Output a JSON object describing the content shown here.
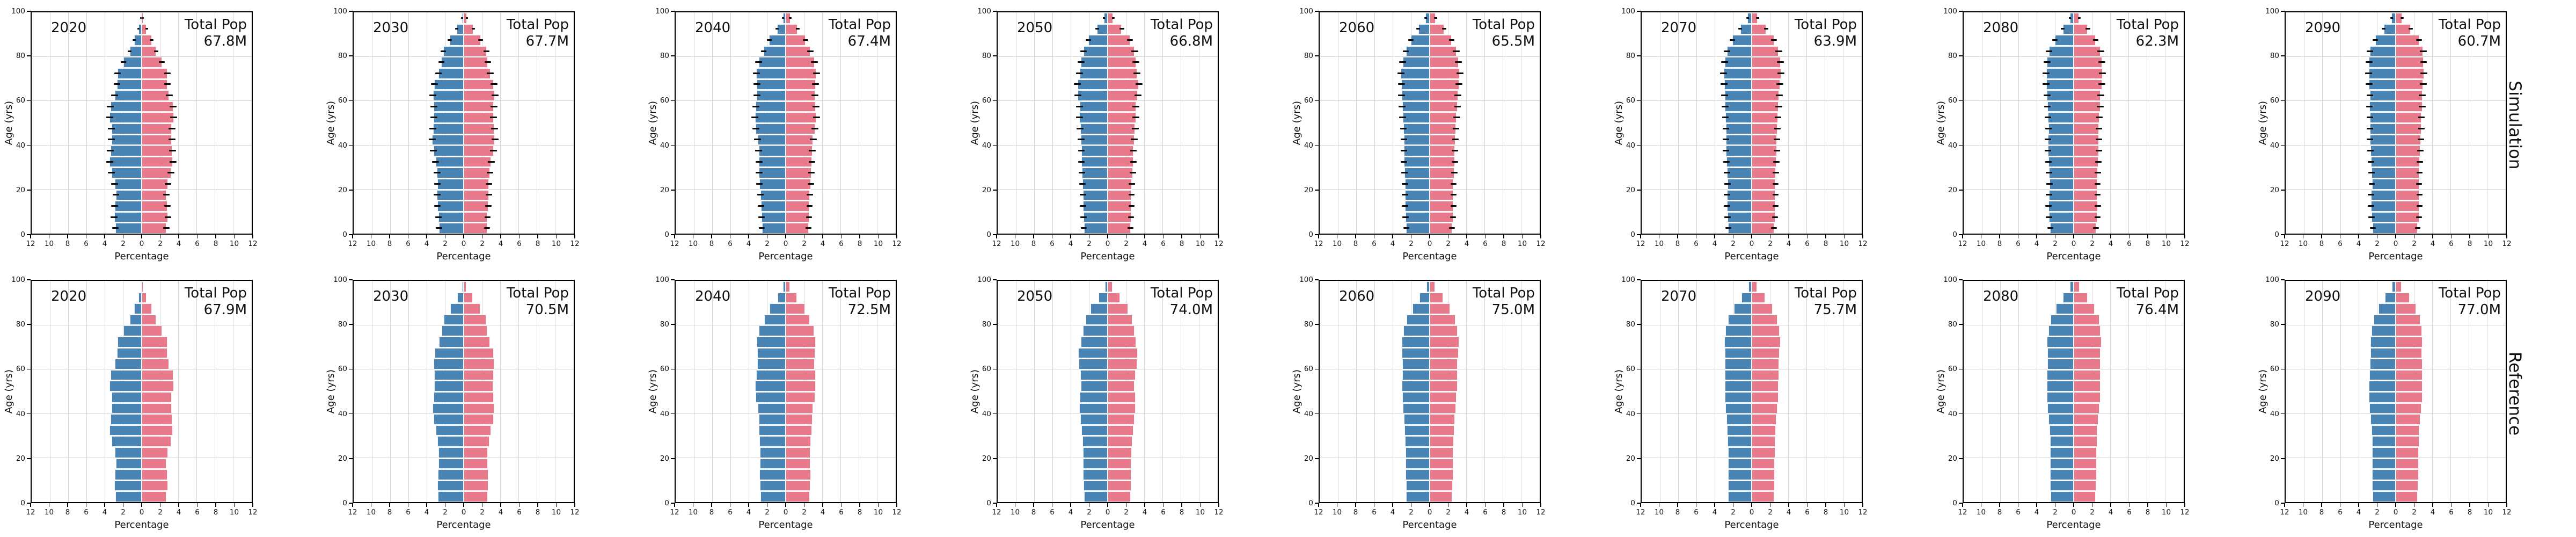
{
  "colors": {
    "male": "#4a84b5",
    "female": "#e8798a",
    "grid": "#d4d4d4",
    "spine": "#000000",
    "error_bar": "#0a0a0a",
    "background": "#ffffff"
  },
  "chart_data": {
    "type": "bar",
    "subtype": "population-pyramid-grid",
    "title": "",
    "xlabel": "Percentage",
    "ylabel": "Age (yrs)",
    "total_pop_label": "Total Pop",
    "xticklabels": [
      "12",
      "10",
      "8",
      "6",
      "4",
      "2",
      "0",
      "2",
      "4",
      "6",
      "8",
      "10",
      "12"
    ],
    "yticklabels": [
      "0",
      "20",
      "40",
      "60",
      "80",
      "100"
    ],
    "x_abs_max": 12,
    "age_bins": [
      0,
      5,
      10,
      15,
      20,
      25,
      30,
      35,
      40,
      45,
      50,
      55,
      60,
      65,
      70,
      75,
      80,
      85,
      90,
      95
    ],
    "age_bin_width": 5,
    "grid_on": true,
    "rows": [
      {
        "label": "Simulation",
        "error_bars": true,
        "charts": [
          {
            "year": "2020",
            "total": "67.8M",
            "male": [
              2.85,
              3.0,
              2.95,
              2.8,
              2.95,
              3.3,
              3.5,
              3.4,
              3.3,
              3.3,
              3.5,
              3.4,
              2.95,
              2.7,
              2.65,
              2.0,
              1.3,
              0.8,
              0.35,
              0.08
            ],
            "female": [
              2.7,
              2.85,
              2.8,
              2.7,
              2.85,
              3.2,
              3.4,
              3.35,
              3.3,
              3.3,
              3.5,
              3.45,
              3.0,
              2.8,
              2.8,
              2.2,
              1.6,
              1.1,
              0.55,
              0.15
            ]
          },
          {
            "year": "2030",
            "total": "67.7M",
            "male": [
              2.7,
              2.75,
              2.85,
              2.9,
              2.85,
              2.9,
              3.05,
              3.3,
              3.45,
              3.35,
              3.25,
              3.25,
              3.35,
              3.2,
              2.75,
              2.45,
              2.2,
              1.5,
              0.75,
              0.2
            ],
            "female": [
              2.55,
              2.6,
              2.7,
              2.75,
              2.75,
              2.85,
              3.0,
              3.25,
              3.4,
              3.35,
              3.25,
              3.3,
              3.4,
              3.3,
              2.9,
              2.65,
              2.5,
              1.85,
              1.05,
              0.35
            ]
          },
          {
            "year": "2040",
            "total": "67.4M",
            "male": [
              2.6,
              2.65,
              2.7,
              2.75,
              2.85,
              2.9,
              2.9,
              2.95,
              3.05,
              3.25,
              3.35,
              3.25,
              3.15,
              3.15,
              3.2,
              2.95,
              2.4,
              1.8,
              0.95,
              0.3
            ],
            "female": [
              2.5,
              2.55,
              2.6,
              2.65,
              2.75,
              2.8,
              2.85,
              2.9,
              3.0,
              3.2,
              3.35,
              3.3,
              3.2,
              3.25,
              3.35,
              3.15,
              2.7,
              2.15,
              1.3,
              0.5
            ]
          },
          {
            "year": "2050",
            "total": "66.8M",
            "male": [
              2.6,
              2.65,
              2.7,
              2.7,
              2.75,
              2.8,
              2.85,
              2.85,
              2.9,
              3.0,
              3.1,
              3.05,
              3.25,
              3.3,
              3.05,
              2.9,
              2.65,
              2.1,
              1.15,
              0.4
            ],
            "female": [
              2.5,
              2.55,
              2.6,
              2.6,
              2.65,
              2.75,
              2.8,
              2.8,
              2.9,
              3.0,
              3.1,
              3.1,
              3.3,
              3.4,
              3.2,
              3.1,
              2.95,
              2.45,
              1.55,
              0.6
            ]
          },
          {
            "year": "2060",
            "total": "65.5M",
            "male": [
              2.55,
              2.65,
              2.7,
              2.7,
              2.7,
              2.75,
              2.8,
              2.8,
              2.8,
              2.85,
              2.95,
              3.0,
              3.05,
              3.1,
              3.15,
              2.95,
              2.6,
              2.05,
              1.25,
              0.45
            ],
            "female": [
              2.45,
              2.55,
              2.6,
              2.6,
              2.6,
              2.7,
              2.75,
              2.75,
              2.8,
              2.85,
              2.95,
              3.05,
              3.1,
              3.2,
              3.3,
              3.15,
              2.9,
              2.4,
              1.6,
              0.65
            ]
          },
          {
            "year": "2070",
            "total": "63.9M",
            "male": [
              2.55,
              2.65,
              2.7,
              2.7,
              2.65,
              2.7,
              2.75,
              2.8,
              2.8,
              2.8,
              2.85,
              2.9,
              2.95,
              3.0,
              3.05,
              2.95,
              2.7,
              2.1,
              1.25,
              0.45
            ],
            "female": [
              2.45,
              2.55,
              2.6,
              2.6,
              2.6,
              2.65,
              2.7,
              2.75,
              2.75,
              2.8,
              2.85,
              2.95,
              3.0,
              3.1,
              3.2,
              3.15,
              2.95,
              2.45,
              1.6,
              0.65
            ]
          },
          {
            "year": "2080",
            "total": "62.3M",
            "male": [
              2.55,
              2.7,
              2.75,
              2.7,
              2.65,
              2.7,
              2.75,
              2.8,
              2.8,
              2.75,
              2.8,
              2.85,
              2.9,
              3.0,
              3.0,
              2.9,
              2.7,
              2.05,
              1.2,
              0.4
            ],
            "female": [
              2.45,
              2.6,
              2.65,
              2.6,
              2.6,
              2.65,
              2.7,
              2.75,
              2.75,
              2.75,
              2.8,
              2.9,
              2.95,
              3.1,
              3.15,
              3.1,
              2.95,
              2.4,
              1.55,
              0.6
            ]
          },
          {
            "year": "2090",
            "total": "60.7M",
            "male": [
              2.5,
              2.65,
              2.7,
              2.7,
              2.6,
              2.65,
              2.7,
              2.75,
              2.8,
              2.8,
              2.8,
              2.85,
              2.8,
              2.9,
              2.95,
              2.9,
              2.8,
              2.2,
              1.3,
              0.45
            ],
            "female": [
              2.4,
              2.55,
              2.6,
              2.6,
              2.55,
              2.6,
              2.65,
              2.7,
              2.75,
              2.8,
              2.8,
              2.9,
              2.9,
              3.0,
              3.1,
              3.05,
              3.0,
              2.55,
              1.65,
              0.7
            ]
          }
        ]
      },
      {
        "label": "Reference",
        "error_bars": false,
        "charts": [
          {
            "year": "2020",
            "total": "67.9M",
            "male": [
              2.85,
              3.0,
              2.95,
              2.8,
              2.95,
              3.3,
              3.5,
              3.4,
              3.3,
              3.3,
              3.5,
              3.4,
              2.95,
              2.7,
              2.65,
              2.0,
              1.3,
              0.8,
              0.35,
              0.08
            ],
            "female": [
              2.7,
              2.85,
              2.8,
              2.7,
              2.85,
              3.2,
              3.4,
              3.35,
              3.3,
              3.3,
              3.5,
              3.45,
              3.0,
              2.8,
              2.8,
              2.2,
              1.6,
              1.1,
              0.55,
              0.15
            ]
          },
          {
            "year": "2030",
            "total": "70.5M",
            "male": [
              2.8,
              2.85,
              2.8,
              2.75,
              2.75,
              2.85,
              3.05,
              3.3,
              3.4,
              3.3,
              3.2,
              3.2,
              3.3,
              3.15,
              2.7,
              2.4,
              2.15,
              1.45,
              0.7,
              0.18
            ],
            "female": [
              2.65,
              2.7,
              2.7,
              2.65,
              2.65,
              2.8,
              3.0,
              3.25,
              3.35,
              3.3,
              3.2,
              3.25,
              3.35,
              3.25,
              2.85,
              2.6,
              2.45,
              1.8,
              1.0,
              0.32
            ]
          },
          {
            "year": "2040",
            "total": "72.5M",
            "male": [
              2.75,
              2.8,
              2.85,
              2.8,
              2.8,
              2.85,
              2.9,
              2.95,
              3.05,
              3.25,
              3.35,
              3.2,
              3.1,
              3.1,
              3.15,
              2.9,
              2.35,
              1.75,
              0.9,
              0.28
            ],
            "female": [
              2.65,
              2.7,
              2.75,
              2.7,
              2.7,
              2.75,
              2.85,
              2.9,
              3.0,
              3.2,
              3.3,
              3.25,
              3.15,
              3.2,
              3.3,
              3.1,
              2.65,
              2.1,
              1.25,
              0.45
            ]
          },
          {
            "year": "2050",
            "total": "74.0M",
            "male": [
              2.6,
              2.65,
              2.7,
              2.7,
              2.7,
              2.75,
              2.85,
              3.0,
              3.1,
              3.05,
              2.95,
              3.0,
              3.15,
              3.2,
              2.95,
              2.7,
              2.4,
              1.85,
              1.0,
              0.32
            ],
            "female": [
              2.5,
              2.55,
              2.6,
              2.6,
              2.65,
              2.7,
              2.8,
              2.95,
              3.05,
              3.05,
              2.95,
              3.05,
              3.2,
              3.3,
              3.1,
              2.9,
              2.7,
              2.2,
              1.35,
              0.5
            ]
          },
          {
            "year": "2060",
            "total": "75.0M",
            "male": [
              2.55,
              2.6,
              2.65,
              2.65,
              2.65,
              2.7,
              2.75,
              2.8,
              2.9,
              3.0,
              3.05,
              3.0,
              3.0,
              3.05,
              3.05,
              2.85,
              2.5,
              1.9,
              1.1,
              0.38
            ],
            "female": [
              2.45,
              2.5,
              2.55,
              2.55,
              2.6,
              2.65,
              2.7,
              2.75,
              2.85,
              2.95,
              3.05,
              3.05,
              3.05,
              3.15,
              3.2,
              3.05,
              2.8,
              2.25,
              1.45,
              0.58
            ]
          },
          {
            "year": "2070",
            "total": "75.7M",
            "male": [
              2.55,
              2.6,
              2.6,
              2.6,
              2.6,
              2.65,
              2.7,
              2.75,
              2.85,
              2.9,
              2.95,
              2.95,
              2.95,
              2.95,
              3.0,
              2.85,
              2.55,
              1.95,
              1.1,
              0.38
            ],
            "female": [
              2.45,
              2.5,
              2.5,
              2.5,
              2.55,
              2.6,
              2.65,
              2.7,
              2.8,
              2.9,
              2.95,
              3.0,
              3.0,
              3.05,
              3.15,
              3.05,
              2.8,
              2.3,
              1.45,
              0.58
            ]
          },
          {
            "year": "2080",
            "total": "76.4M",
            "male": [
              2.5,
              2.55,
              2.6,
              2.6,
              2.55,
              2.6,
              2.65,
              2.75,
              2.85,
              2.9,
              2.9,
              2.9,
              2.85,
              2.85,
              2.9,
              2.75,
              2.5,
              1.95,
              1.15,
              0.4
            ],
            "female": [
              2.4,
              2.45,
              2.5,
              2.5,
              2.5,
              2.55,
              2.6,
              2.7,
              2.8,
              2.9,
              2.9,
              2.95,
              2.95,
              2.95,
              3.05,
              2.95,
              2.8,
              2.3,
              1.5,
              0.62
            ]
          },
          {
            "year": "2090",
            "total": "77.0M",
            "male": [
              2.5,
              2.55,
              2.6,
              2.6,
              2.55,
              2.6,
              2.65,
              2.75,
              2.85,
              2.9,
              2.9,
              2.85,
              2.8,
              2.75,
              2.75,
              2.65,
              2.4,
              1.9,
              1.15,
              0.42
            ],
            "female": [
              2.4,
              2.45,
              2.5,
              2.5,
              2.5,
              2.55,
              2.6,
              2.7,
              2.8,
              2.9,
              2.9,
              2.9,
              2.9,
              2.85,
              2.9,
              2.85,
              2.7,
              2.25,
              1.5,
              0.65
            ]
          }
        ]
      }
    ]
  }
}
